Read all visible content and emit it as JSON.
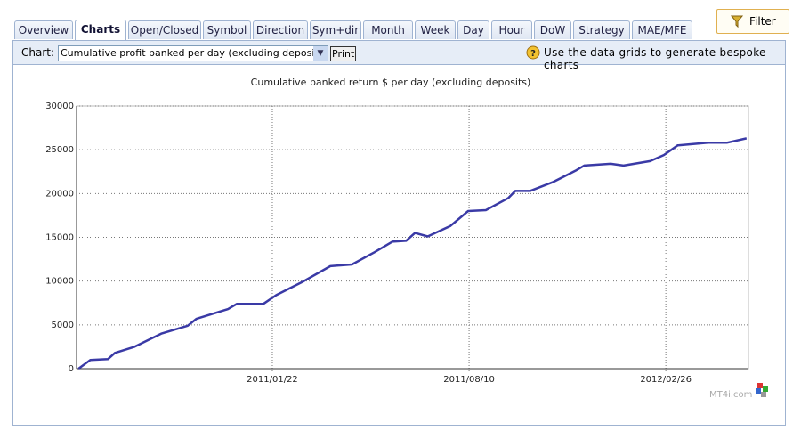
{
  "tabs": [
    "Overview",
    "Charts",
    "Open/Closed",
    "Symbol",
    "Direction",
    "Sym+dir",
    "Month",
    "Week",
    "Day",
    "Hour",
    "DoW",
    "Strategy",
    "MAE/MFE"
  ],
  "active_tab": 1,
  "filter_button": "Filter",
  "toolbar": {
    "chart_label": "Chart:",
    "chart_select": "Cumulative profit banked per day (excluding deposits)",
    "print_button": "Print",
    "tip": "Use the data grids to generate bespoke charts"
  },
  "watermark": "MT4i.com",
  "chart_data": {
    "type": "line",
    "title": "Cumulative banked return $ per day (excluding deposits)",
    "x": [
      "2010/07/09",
      "2010/07/21",
      "2010/08/08",
      "2010/08/15",
      "2010/09/04",
      "2010/10/01",
      "2010/10/28",
      "2010/11/06",
      "2010/12/08",
      "2010/12/17",
      "2011/01/13",
      "2011/01/26",
      "2011/02/23",
      "2011/03/22",
      "2011/04/13",
      "2011/05/06",
      "2011/05/24",
      "2011/06/07",
      "2011/06/16",
      "2011/06/29",
      "2011/07/22",
      "2011/08/09",
      "2011/08/27",
      "2011/09/19",
      "2011/09/26",
      "2011/10/11",
      "2011/11/03",
      "2011/11/26",
      "2011/12/05",
      "2012/01/01",
      "2012/01/14",
      "2012/02/10",
      "2012/02/24",
      "2012/03/09",
      "2012/04/09",
      "2012/04/28",
      "2012/05/18"
    ],
    "series": [
      {
        "name": "Cumulative banked return",
        "color": "#3a3aa6",
        "values": [
          0,
          1000,
          1100,
          1800,
          2500,
          4000,
          4900,
          5700,
          6800,
          7400,
          7400,
          8400,
          10000,
          11700,
          11900,
          13300,
          14500,
          14600,
          15500,
          15100,
          16300,
          18000,
          18100,
          19500,
          20300,
          20300,
          21300,
          22600,
          23200,
          23400,
          23200,
          23700,
          24400,
          25500,
          25800,
          25800,
          26300
        ]
      }
    ],
    "xlim": [
      "2010/07/07",
      "2012/05/20"
    ],
    "xticks": [
      "2011/01/22",
      "2011/08/10",
      "2012/02/26"
    ],
    "ylim": [
      0,
      30000
    ],
    "yticks": [
      0,
      5000,
      10000,
      15000,
      20000,
      25000,
      30000
    ],
    "grid": true
  }
}
